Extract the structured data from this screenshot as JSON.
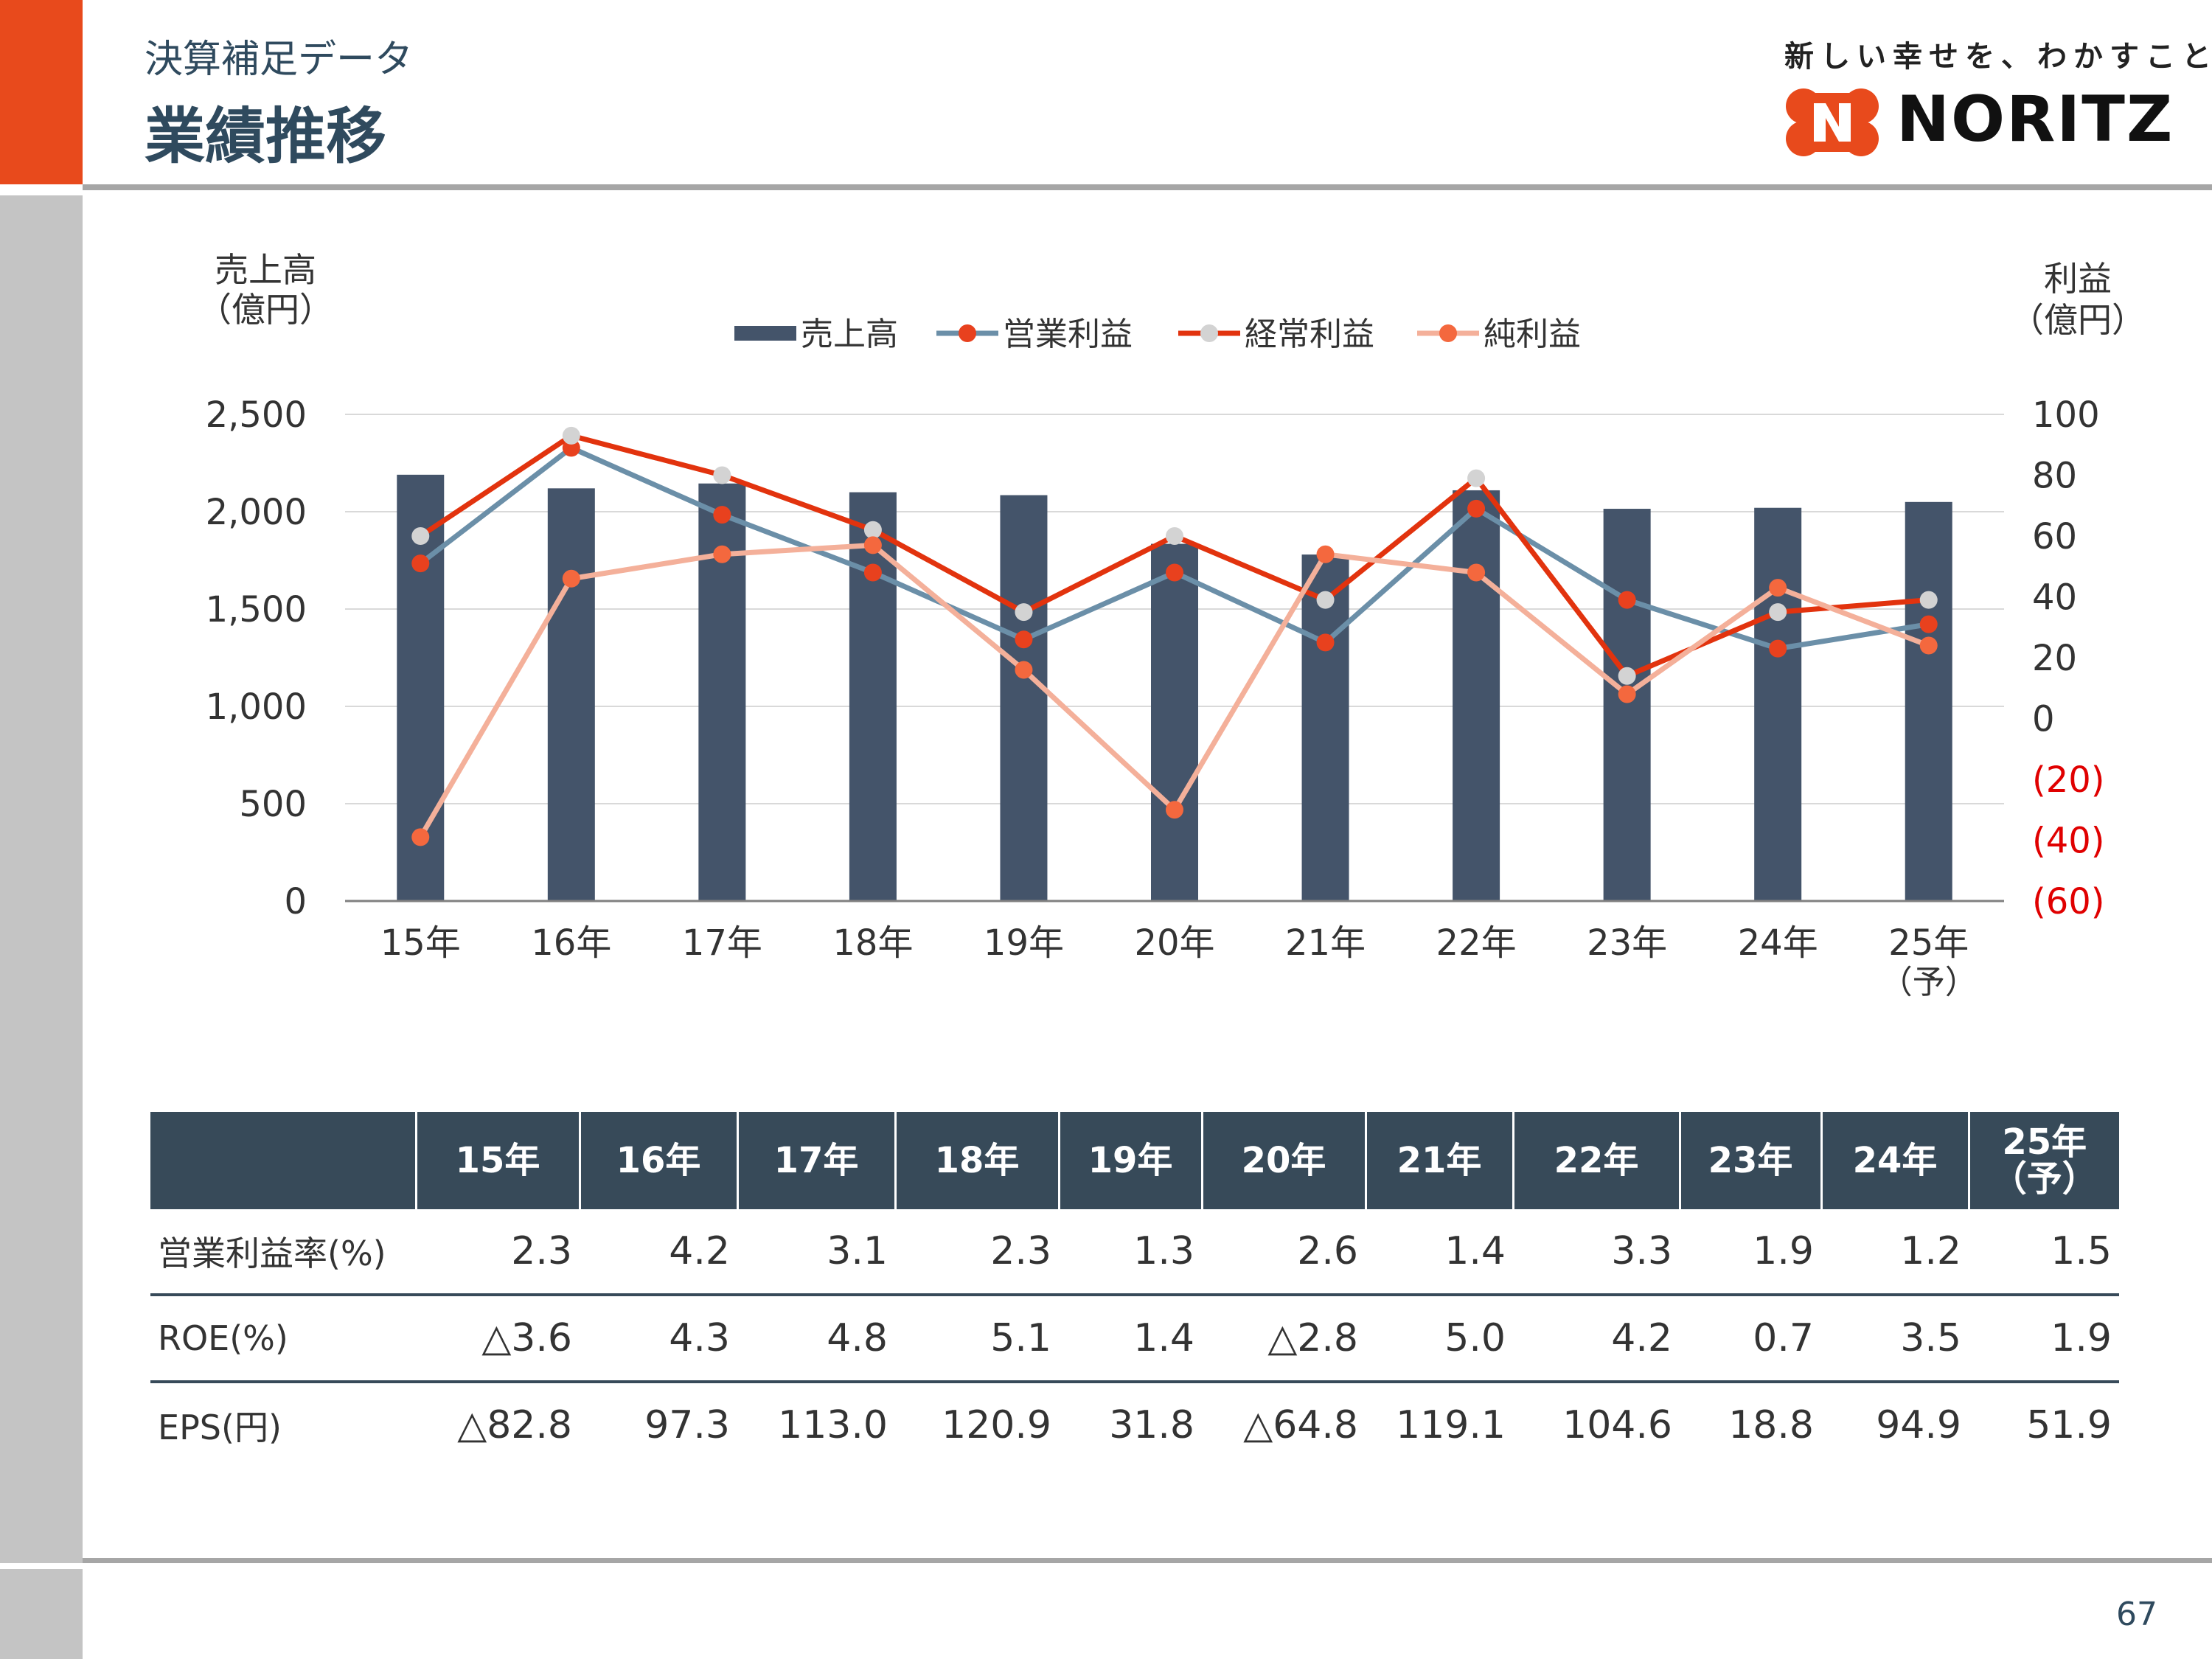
{
  "header": {
    "subtitle": "決算補足データ",
    "title": "業績推移",
    "slogan": "新しい幸せを、わかすこと。",
    "logo_text": "NORITZ",
    "accent_color": "#e84a1c",
    "text_color": "#2f4a5e"
  },
  "footer": {
    "page_number": "67"
  },
  "chart_data": {
    "type": "bar+line",
    "title": "",
    "categories": [
      "15年",
      "16年",
      "17年",
      "18年",
      "19年",
      "20年",
      "21年",
      "22年",
      "23年",
      "24年",
      "25年（予）"
    ],
    "y_left": {
      "label_line1": "売上高",
      "label_line2": "（億円）",
      "range": [
        0,
        2500
      ],
      "ticks": [
        "0",
        "500",
        "1,000",
        "1,500",
        "2,000",
        "2,500"
      ]
    },
    "y_right": {
      "label_line1": "利益",
      "label_line2": "（億円）",
      "range": [
        -60,
        100
      ],
      "ticks": [
        "(60)",
        "(40)",
        "(20)",
        "0",
        "20",
        "40",
        "60",
        "80",
        "100"
      ]
    },
    "grid": true,
    "legend_position": "top",
    "series": [
      {
        "name": "売上高",
        "kind": "bar",
        "axis": "left",
        "color": "#44546a",
        "values": [
          2190,
          2120,
          2145,
          2100,
          2085,
          1835,
          1780,
          2110,
          2015,
          2020,
          2050
        ]
      },
      {
        "name": "営業利益",
        "kind": "line",
        "axis": "right",
        "line_color": "#6b8fa8",
        "marker_color": "#e8411e",
        "values": [
          51,
          89,
          67,
          48,
          26,
          48,
          25,
          69,
          39,
          23,
          31
        ]
      },
      {
        "name": "経常利益",
        "kind": "line",
        "axis": "right",
        "line_color": "#e2330e",
        "marker_color": "#d3d3d3",
        "values": [
          60,
          93,
          80,
          62,
          35,
          60,
          39,
          79,
          14,
          35,
          39
        ]
      },
      {
        "name": "純利益",
        "kind": "line",
        "axis": "right",
        "line_color": "#f4b09a",
        "marker_color": "#f4683e",
        "values": [
          -39,
          46,
          54,
          57,
          16,
          -30,
          54,
          48,
          8,
          43,
          24
        ]
      }
    ]
  },
  "table": {
    "corner": "",
    "headers": [
      "15年",
      "16年",
      "17年",
      "18年",
      "19年",
      "20年",
      "21年",
      "22年",
      "23年",
      "24年",
      "25年"
    ],
    "header_last_sub": "（予）",
    "rows": [
      {
        "label": "営業利益率(%)",
        "values": [
          "2.3",
          "4.2",
          "3.1",
          "2.3",
          "1.3",
          "2.6",
          "1.4",
          "3.3",
          "1.9",
          "1.2",
          "1.5"
        ]
      },
      {
        "label": "ROE(%)",
        "values": [
          "△3.6",
          "4.3",
          "4.8",
          "5.1",
          "1.4",
          "△2.8",
          "5.0",
          "4.2",
          "0.7",
          "3.5",
          "1.9"
        ]
      },
      {
        "label": "EPS(円)",
        "values": [
          "△82.8",
          "97.3",
          "113.0",
          "120.9",
          "31.8",
          "△64.8",
          "119.1",
          "104.6",
          "18.8",
          "94.9",
          "51.9"
        ]
      }
    ]
  }
}
